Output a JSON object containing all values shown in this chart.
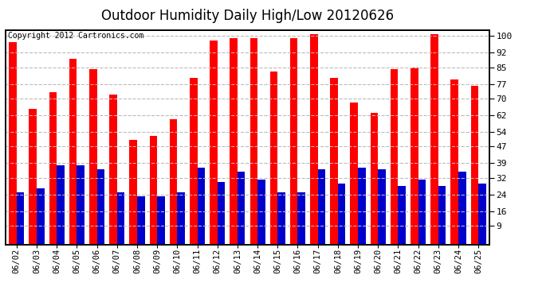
{
  "title": "Outdoor Humidity Daily High/Low 20120626",
  "copyright": "Copyright 2012 Cartronics.com",
  "categories": [
    "06/02",
    "06/03",
    "06/04",
    "06/05",
    "06/06",
    "06/07",
    "06/08",
    "06/09",
    "06/10",
    "06/11",
    "06/12",
    "06/13",
    "06/14",
    "06/15",
    "06/16",
    "06/17",
    "06/18",
    "06/19",
    "06/20",
    "06/21",
    "06/22",
    "06/23",
    "06/24",
    "06/25"
  ],
  "highs": [
    97,
    65,
    73,
    89,
    84,
    72,
    50,
    52,
    60,
    80,
    98,
    99,
    99,
    83,
    99,
    101,
    80,
    68,
    63,
    84,
    85,
    101,
    79,
    76
  ],
  "lows": [
    25,
    27,
    38,
    38,
    36,
    25,
    23,
    23,
    25,
    37,
    30,
    35,
    31,
    25,
    25,
    36,
    29,
    37,
    36,
    28,
    31,
    28,
    35,
    29
  ],
  "yticks": [
    9,
    16,
    24,
    32,
    39,
    47,
    54,
    62,
    70,
    77,
    85,
    92,
    100
  ],
  "ymin": 0,
  "ymax": 103,
  "bar_width": 0.38,
  "high_color": "#ff0000",
  "low_color": "#0000cc",
  "bg_color": "#ffffff",
  "grid_color": "#bbbbbb",
  "title_fontsize": 12,
  "tick_fontsize": 8,
  "copyright_fontsize": 7
}
